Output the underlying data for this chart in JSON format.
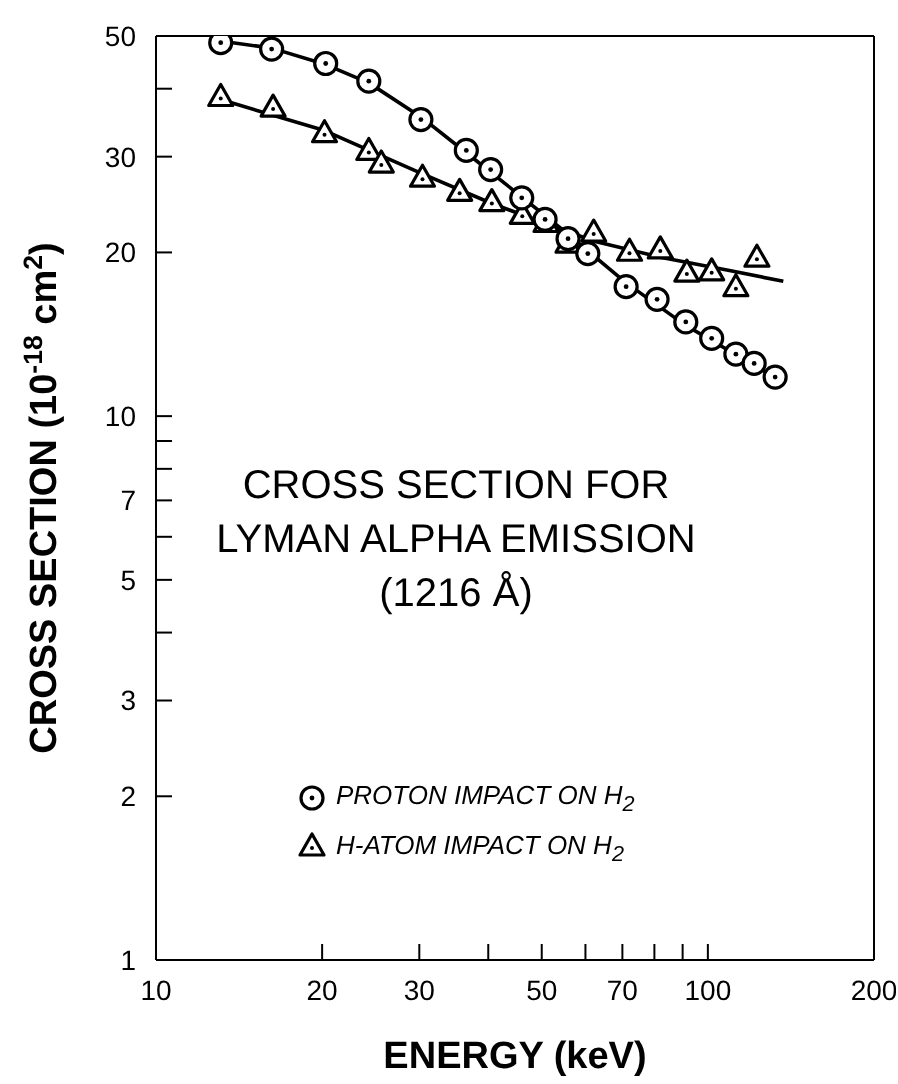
{
  "chart_data": {
    "type": "scatter",
    "title": "CROSS SECTION FOR\nLYMAN ALPHA EMISSION\n(1216 Å)",
    "xlabel": "ENERGY (keV)",
    "ylabel": "CROSS SECTION (10$^{-18}$ cm$^{2}$)",
    "log": "xy",
    "xlim": [
      10,
      200
    ],
    "ylim": [
      1,
      50
    ],
    "xticks": [
      10,
      20,
      30,
      {
        "value": 40,
        "label": null
      },
      50,
      {
        "value": 60,
        "label": null
      },
      70,
      {
        "value": 80,
        "label": null
      },
      {
        "value": 90,
        "label": null
      },
      100,
      200
    ],
    "yticks": [
      1,
      2,
      3,
      {
        "value": 4,
        "label": null
      },
      5,
      {
        "value": 6,
        "label": null
      },
      7,
      {
        "value": 8,
        "label": null
      },
      {
        "value": 9,
        "label": null
      },
      10,
      20,
      30,
      {
        "value": 40,
        "label": null
      },
      50
    ],
    "grid": false,
    "legend": "left",
    "series": [
      {
        "name": "PROTON IMPACT ON H$_{2}$",
        "type": "scatter",
        "marker": "circle",
        "color": "#000000",
        "x": [
          13.1,
          16.2,
          20.3,
          24.3,
          30.2,
          36.5,
          40.4,
          46.0,
          50.7,
          55.8,
          60.6,
          71.1,
          80.9,
          91.2,
          101.6,
          112.4,
          121.3,
          132.4
        ],
        "values": [
          48.6,
          47.3,
          44.5,
          41.3,
          35.1,
          30.8,
          28.4,
          25.2,
          23.0,
          21.2,
          19.9,
          17.3,
          16.4,
          14.9,
          13.9,
          13.0,
          12.5,
          11.8
        ]
      },
      {
        "name": "H-ATOM IMPACT ON H$_{2}$",
        "type": "scatter",
        "marker": "triangle",
        "color": "#000000",
        "x": [
          13.1,
          16.3,
          20.2,
          24.3,
          25.6,
          30.4,
          35.5,
          40.6,
          46.1,
          50.9,
          55.8,
          62.1,
          72.1,
          82.0,
          91.6,
          101.6,
          112.4,
          122.7
        ],
        "values": [
          38.7,
          37.0,
          33.2,
          30.8,
          29.2,
          27.5,
          25.9,
          24.8,
          23.5,
          22.7,
          20.8,
          21.8,
          20.1,
          20.3,
          18.4,
          18.5,
          17.3,
          19.6
        ]
      },
      {
        "type": "line",
        "marker": "none",
        "color": "#000000",
        "x": [
          12.6,
          16.2,
          20.3,
          24.3,
          30.2,
          36.5,
          46.0,
          55.8,
          71.0,
          91.0,
          132.0
        ],
        "values": [
          49.2,
          47.5,
          44.3,
          41.0,
          35.5,
          30.5,
          25.3,
          21.6,
          17.6,
          14.7,
          11.8
        ]
      },
      {
        "type": "line",
        "marker": "none",
        "color": "#000000",
        "x": [
          13.1,
          20.2,
          30.4,
          40.6,
          50.9,
          62.0,
          82.0,
          110.0,
          137.0
        ],
        "values": [
          38.2,
          33.5,
          27.9,
          24.6,
          22.6,
          21.0,
          19.6,
          18.5,
          17.7
        ]
      }
    ]
  }
}
